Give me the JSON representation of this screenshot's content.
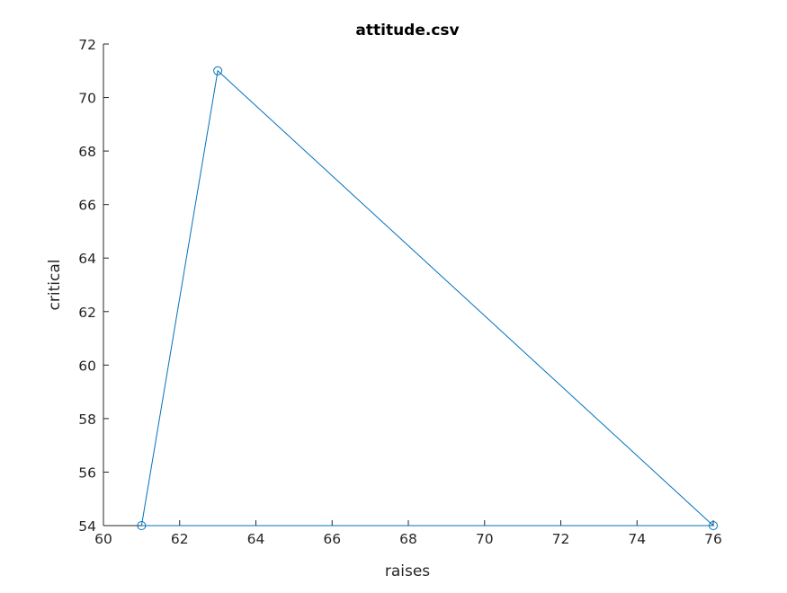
{
  "chart_data": {
    "type": "line",
    "title": "attitude.csv",
    "xlabel": "raises",
    "ylabel": "critical",
    "xlim": [
      60,
      76
    ],
    "ylim": [
      54,
      72
    ],
    "xticks": [
      60,
      62,
      64,
      66,
      68,
      70,
      72,
      74,
      76
    ],
    "yticks": [
      54,
      56,
      58,
      60,
      62,
      64,
      66,
      68,
      70,
      72
    ],
    "grid": false,
    "marker": "circle",
    "colors": {
      "line": "#0072BD",
      "axis": "#262626"
    },
    "series": [
      {
        "x": [
          61,
          63,
          76,
          61
        ],
        "y": [
          54,
          71,
          54,
          54
        ]
      }
    ]
  }
}
